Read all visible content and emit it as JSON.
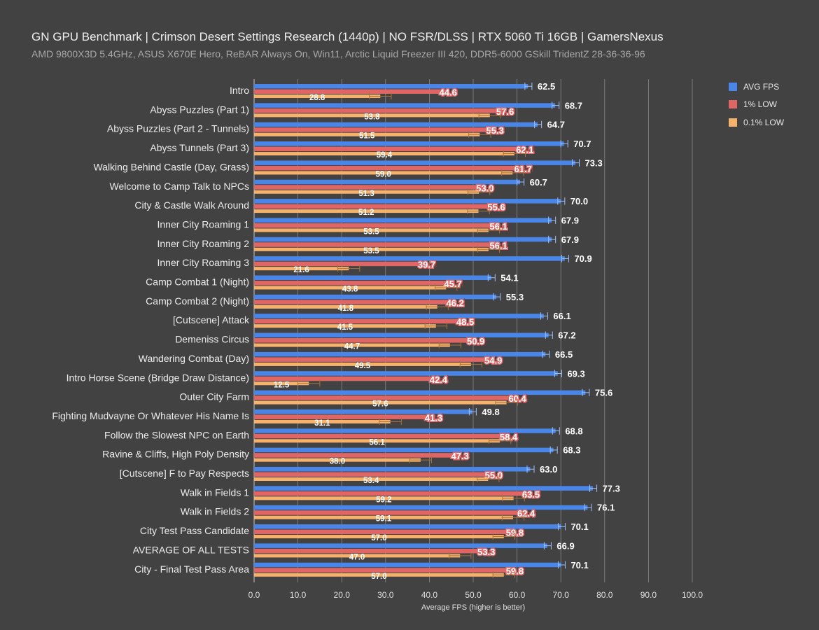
{
  "chart_data": {
    "type": "bar",
    "orientation": "horizontal",
    "title": "GN GPU Benchmark | Crimson Desert Settings Research (1440p) | NO FSR/DLSS | RTX 5060 Ti 16GB | GamersNexus",
    "subtitle": "AMD 9800X3D 5.4GHz, ASUS X670E Hero, ReBAR Always On, Win11, Arctic Liquid Freezer III 420, DDR5-6000 GSkill TridentZ 28-36-36-96",
    "xlabel": "Average FPS (higher is better)",
    "ylabel": "",
    "xlim": [
      0,
      100
    ],
    "xticks": [
      "0.0",
      "10.0",
      "20.0",
      "30.0",
      "40.0",
      "50.0",
      "60.0",
      "70.0",
      "80.0",
      "90.0",
      "100.0"
    ],
    "grid": true,
    "legend_position": "top-right",
    "categories": [
      "Intro",
      "Abyss Puzzles (Part 1)",
      "Abyss Puzzles (Part 2 - Tunnels)",
      "Abyss Tunnels (Part 3)",
      "Walking Behind Castle (Day, Grass)",
      "Welcome to Camp Talk to NPCs",
      "City & Castle Walk Around",
      "Inner City Roaming 1",
      "Inner City Roaming 2",
      "Inner City Roaming 3",
      "Camp Combat 1 (Night)",
      "Camp Combat 2 (Night)",
      "[Cutscene] Attack",
      "Demeniss Circus",
      "Wandering Combat (Day)",
      "Intro Horse Scene (Bridge Draw Distance)",
      "Outer City Farm",
      "Fighting Mudvayne Or Whatever His Name Is",
      "Follow the Slowest NPC on Earth",
      "Ravine & Cliffs, High Poly Density",
      "[Cutscene] F to Pay Respects",
      "Walk in Fields 1",
      "Walk in Fields 2",
      "City Test Pass Candidate",
      "AVERAGE OF ALL TESTS",
      "City - Final Test Pass Area"
    ],
    "series": [
      {
        "name": "AVG FPS",
        "color": "#4a86e8",
        "values": [
          62.5,
          68.7,
          64.7,
          70.7,
          73.3,
          60.7,
          70.0,
          67.9,
          67.9,
          70.9,
          54.1,
          55.3,
          66.1,
          67.2,
          66.5,
          69.3,
          75.6,
          49.8,
          68.8,
          68.3,
          63.0,
          77.3,
          76.1,
          70.1,
          66.9,
          70.1
        ]
      },
      {
        "name": "1% LOW",
        "color": "#e06666",
        "values": [
          44.6,
          57.6,
          55.3,
          62.1,
          61.7,
          53.0,
          55.6,
          56.1,
          56.1,
          39.7,
          45.7,
          46.2,
          48.5,
          50.9,
          54.9,
          42.4,
          60.4,
          41.3,
          58.4,
          47.3,
          55.0,
          63.5,
          62.4,
          59.8,
          53.3,
          59.8
        ]
      },
      {
        "name": "0.1% LOW",
        "color": "#f6b26b",
        "values": [
          28.8,
          53.8,
          51.5,
          59.4,
          59.0,
          51.3,
          51.2,
          53.5,
          53.5,
          21.6,
          43.8,
          41.8,
          41.5,
          44.7,
          49.5,
          12.5,
          57.6,
          31.1,
          56.1,
          38.0,
          53.4,
          59.2,
          59.1,
          57.0,
          47.0,
          57.0
        ]
      }
    ]
  }
}
